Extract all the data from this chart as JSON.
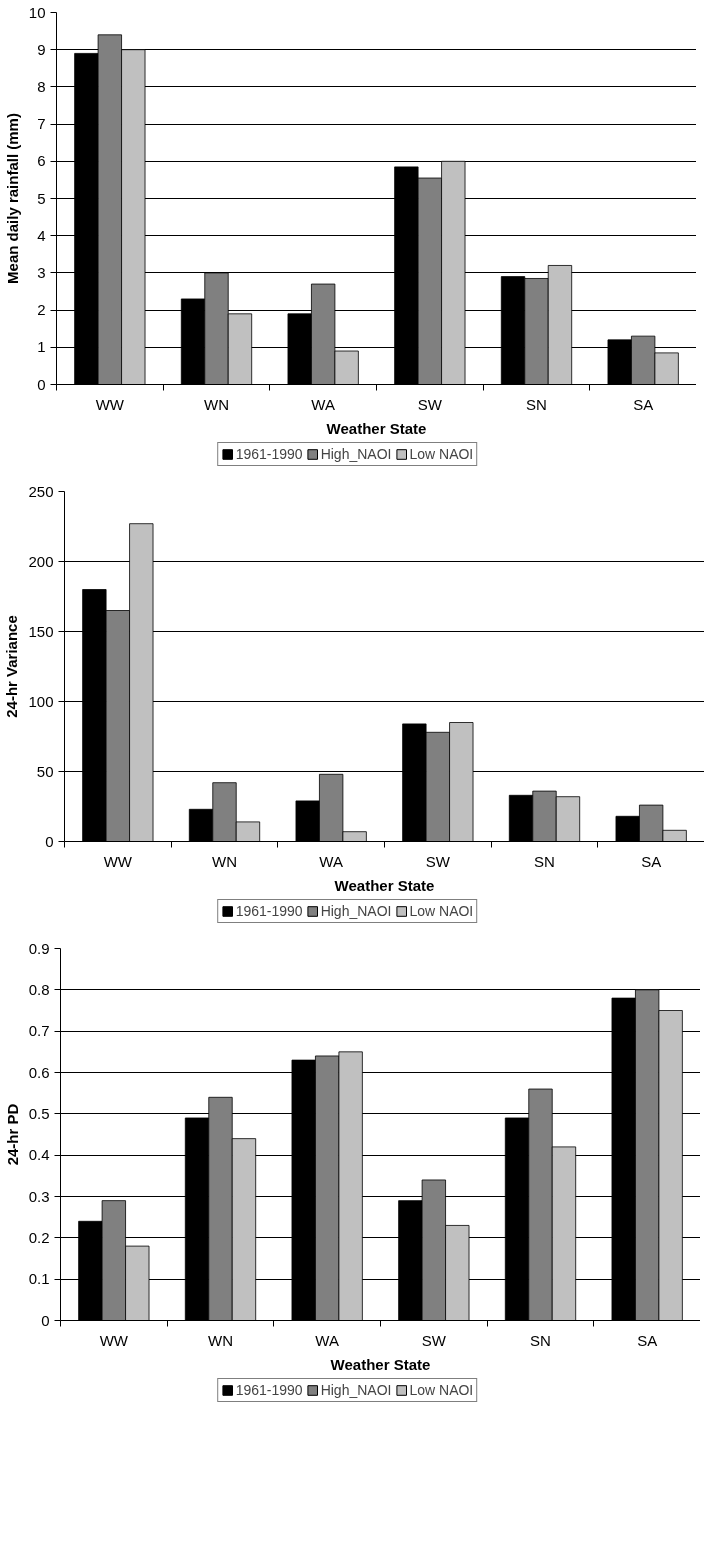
{
  "chart_data": [
    {
      "type": "bar",
      "xlabel": "Weather State",
      "ylabel": "Mean daily rainfall (mm)",
      "categories": [
        "WW",
        "WN",
        "WA",
        "SW",
        "SN",
        "SA"
      ],
      "ylim": [
        0,
        10
      ],
      "yticks": [
        0,
        1,
        2,
        3,
        4,
        5,
        6,
        7,
        8,
        9,
        10
      ],
      "grid": "y",
      "legend": "bottom",
      "series": [
        {
          "name": "1961-1990",
          "color": "#000000",
          "values": [
            8.9,
            2.3,
            1.9,
            5.85,
            2.9,
            1.2
          ]
        },
        {
          "name": "High_NAOI",
          "color": "#808080",
          "values": [
            9.4,
            3.0,
            2.7,
            5.55,
            2.85,
            1.3
          ]
        },
        {
          "name": "Low NAOI",
          "color": "#c0c0c0",
          "values": [
            9.0,
            1.9,
            0.9,
            6.0,
            3.2,
            0.85
          ]
        }
      ]
    },
    {
      "type": "bar",
      "xlabel": "Weather State",
      "ylabel": "24-hr Variance",
      "categories": [
        "WW",
        "WN",
        "WA",
        "SW",
        "SN",
        "SA"
      ],
      "ylim": [
        0,
        250
      ],
      "yticks": [
        0,
        50,
        100,
        150,
        200,
        250
      ],
      "grid": "y",
      "legend": "bottom",
      "series": [
        {
          "name": "1961-1990",
          "color": "#000000",
          "values": [
            180,
            23,
            29,
            84,
            33,
            18
          ]
        },
        {
          "name": "High_NAOI",
          "color": "#808080",
          "values": [
            165,
            42,
            48,
            78,
            36,
            26
          ]
        },
        {
          "name": "Low NAOI",
          "color": "#c0c0c0",
          "values": [
            227,
            14,
            7,
            85,
            32,
            8
          ]
        }
      ]
    },
    {
      "type": "bar",
      "xlabel": "Weather State",
      "ylabel": "24-hr PD",
      "categories": [
        "WW",
        "WN",
        "WA",
        "SW",
        "SN",
        "SA"
      ],
      "ylim": [
        0,
        0.9
      ],
      "yticks": [
        0,
        0.1,
        0.2,
        0.3,
        0.4,
        0.5,
        0.6,
        0.7,
        0.8,
        0.9
      ],
      "grid": "y",
      "legend": "bottom",
      "series": [
        {
          "name": "1961-1990",
          "color": "#000000",
          "values": [
            0.24,
            0.49,
            0.63,
            0.29,
            0.49,
            0.78
          ]
        },
        {
          "name": "High_NAOI",
          "color": "#808080",
          "values": [
            0.29,
            0.54,
            0.64,
            0.34,
            0.56,
            0.8
          ]
        },
        {
          "name": "Low NAOI",
          "color": "#c0c0c0",
          "values": [
            0.18,
            0.44,
            0.65,
            0.23,
            0.42,
            0.75
          ]
        }
      ]
    }
  ]
}
